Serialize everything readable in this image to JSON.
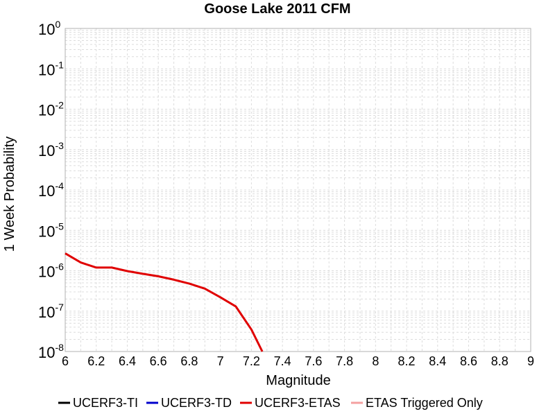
{
  "chart_data": {
    "type": "line",
    "title": "Goose Lake 2011 CFM",
    "xlabel": "Magnitude",
    "ylabel": "1 Week Probability",
    "xlim": [
      6,
      9
    ],
    "ylim": [
      1e-08,
      1
    ],
    "yscale": "log",
    "grid": true,
    "legend_position": "bottom",
    "x_ticks": [
      "6",
      "6.2",
      "6.4",
      "6.6",
      "6.8",
      "7",
      "7.2",
      "7.4",
      "7.6",
      "7.8",
      "8",
      "8.2",
      "8.4",
      "8.6",
      "8.8",
      "9"
    ],
    "y_ticks": [
      {
        "base": "10",
        "exp": "0",
        "value": 1
      },
      {
        "base": "10",
        "exp": "-1",
        "value": 0.1
      },
      {
        "base": "10",
        "exp": "-2",
        "value": 0.01
      },
      {
        "base": "10",
        "exp": "-3",
        "value": 0.001
      },
      {
        "base": "10",
        "exp": "-4",
        "value": 0.0001
      },
      {
        "base": "10",
        "exp": "-5",
        "value": 1e-05
      },
      {
        "base": "10",
        "exp": "-6",
        "value": 1e-06
      },
      {
        "base": "10",
        "exp": "-7",
        "value": 1e-07
      },
      {
        "base": "10",
        "exp": "-8",
        "value": 1e-08
      }
    ],
    "series": [
      {
        "name": "UCERF3-TI",
        "color": "#000000",
        "x": [],
        "y": []
      },
      {
        "name": "UCERF3-TD",
        "color": "#0000cc",
        "x": [],
        "y": []
      },
      {
        "name": "UCERF3-ETAS",
        "color": "#e00000",
        "x": [
          6.0,
          6.1,
          6.2,
          6.3,
          6.4,
          6.5,
          6.6,
          6.7,
          6.8,
          6.9,
          7.0,
          7.1,
          7.2,
          7.27
        ],
        "y": [
          2.7e-06,
          1.6e-06,
          1.2e-06,
          1.2e-06,
          9.8e-07,
          8.4e-07,
          7.3e-07,
          6e-07,
          4.8e-07,
          3.6e-07,
          2.2e-07,
          1.3e-07,
          3.5e-08,
          1e-08
        ]
      },
      {
        "name": "ETAS Triggered Only",
        "color": "#f4a0a0",
        "x": [],
        "y": []
      }
    ]
  }
}
